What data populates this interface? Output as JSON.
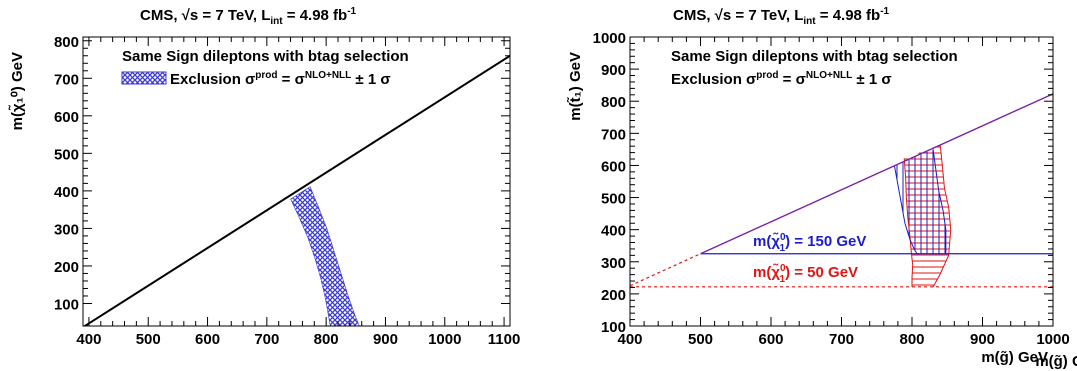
{
  "chart_data": [
    {
      "type": "area",
      "title": "CMS, √s = 7 TeV, L_int = 4.98 fb⁻¹",
      "title_parts": {
        "lead": "CMS, ",
        "root": "√s",
        "mid": " = 7 TeV, L",
        "sub": "int",
        "tail": " = 4.98 fb",
        "sup": "-1"
      },
      "xlabel": "m(g̃) GeV",
      "ylabel": "m(χ̃₁⁰) GeV",
      "xlim": [
        390,
        1110
      ],
      "ylim": [
        40,
        810
      ],
      "x_ticks": [
        400,
        500,
        600,
        700,
        800,
        900,
        1000,
        1100
      ],
      "x_tick_labels": [
        "400",
        "500",
        "600",
        "700",
        "800",
        "900",
        "1000",
        "1100"
      ],
      "y_ticks": [
        100,
        200,
        300,
        400,
        500,
        600,
        700,
        800
      ],
      "y_tick_labels": [
        "100",
        "200",
        "300",
        "400",
        "500",
        "600",
        "700",
        "800"
      ],
      "legend_title": "Same Sign dileptons with btag selection",
      "legend_entry": "Exclusion σ^prod = σ^NLO+NLL ± 1 σ",
      "legend_entry_parts": {
        "a": "Exclusion σ",
        "b": "prod",
        "c": " = σ",
        "d": "NLO+NLL",
        "e": " ± 1 σ"
      },
      "legend_placement": "top",
      "kinematic_line": {
        "x": [
          390,
          1110
        ],
        "y": [
          37,
          760
        ]
      },
      "series": [
        {
          "fill_color": "#3a3ad6",
          "hatch": "cross",
          "outer_edge": {
            "x": [
              773,
              786,
              801,
              813,
              825,
              837,
              848,
              856
            ],
            "y": [
              411,
              361,
              301,
              241,
              181,
              121,
              71,
              40
            ]
          },
          "inner_edge": {
            "x": [
              740,
              754,
              769,
              781,
              791,
              799,
              804,
              807
            ],
            "y": [
              378,
              331,
              276,
              221,
              166,
              111,
              66,
              40
            ]
          }
        }
      ]
    },
    {
      "type": "area",
      "title": "CMS, √s = 7 TeV, L_int = 4.98 fb⁻¹",
      "title_parts": {
        "lead": "CMS, ",
        "root": "√s",
        "mid": " = 7 TeV, L",
        "sub": "int",
        "tail": " = 4.98 fb",
        "sup": "-1"
      },
      "xlabel": "m(g̃) GeV",
      "ylabel": "m(t̃₁) GeV",
      "xlim": [
        400,
        1000
      ],
      "ylim": [
        100,
        1000
      ],
      "x_ticks": [
        400,
        500,
        600,
        700,
        800,
        900,
        1000
      ],
      "x_tick_labels": [
        "400",
        "500",
        "600",
        "700",
        "800",
        "900",
        "1000"
      ],
      "y_ticks": [
        100,
        200,
        300,
        400,
        500,
        600,
        700,
        800,
        900,
        1000
      ],
      "y_tick_labels": [
        "100",
        "200",
        "300",
        "400",
        "500",
        "600",
        "700",
        "800",
        "900",
        "1000"
      ],
      "legend_title": "Same Sign dileptons with btag selection",
      "legend_entry": "Exclusion σ^prod = σ^NLO+NLL ± 1 σ",
      "legend_entry_parts": {
        "a": "Exclusion σ",
        "b": "prod",
        "c": " = σ",
        "d": "NLO+NLL",
        "e": " ± 1 σ"
      },
      "legend_placement": "top",
      "kinematic_line": {
        "x": [
          500,
          1000
        ],
        "y": [
          325,
          823
        ]
      },
      "series": [
        {
          "name": "m(χ̃₁⁰) = 150 GeV",
          "name_parts": {
            "a": "m(χ̃",
            "b": "0",
            "c": "1",
            "d": ") = 150 GeV"
          },
          "color": "#1c1ccc",
          "mass_line_y": 325,
          "mass_line_x": [
            500,
            1000
          ],
          "band_left": {
            "x": [
              775,
              780,
              785,
              790,
              797,
              803,
              807,
              810
            ],
            "y": [
              600,
              540,
              480,
              420,
              370,
              340,
              325,
              325
            ]
          },
          "band_right": {
            "x": [
              830,
              833,
              838,
              844,
              848,
              848
            ],
            "y": [
              650,
              600,
              520,
              460,
              400,
              325
            ]
          }
        },
        {
          "name": "m(χ̃₁⁰) = 50 GeV",
          "name_parts": {
            "a": "m(χ̃",
            "b": "0",
            "c": "1",
            "d": ") = 50 GeV"
          },
          "color": "#e01515",
          "mass_line_y": 222,
          "mass_line_x": [
            400,
            1000
          ],
          "band_left": {
            "x": [
              789,
              791,
              792,
              794,
              797,
              799,
              801,
              800,
              800
            ],
            "y": [
              622,
              560,
              500,
              440,
              380,
              330,
              290,
              250,
              222
            ]
          },
          "band_right": {
            "x": [
              840,
              843,
              846,
              852,
              855,
              852,
              840,
              830
            ],
            "y": [
              665,
              600,
              530,
              470,
              400,
              320,
              262,
              222
            ]
          }
        }
      ]
    }
  ]
}
